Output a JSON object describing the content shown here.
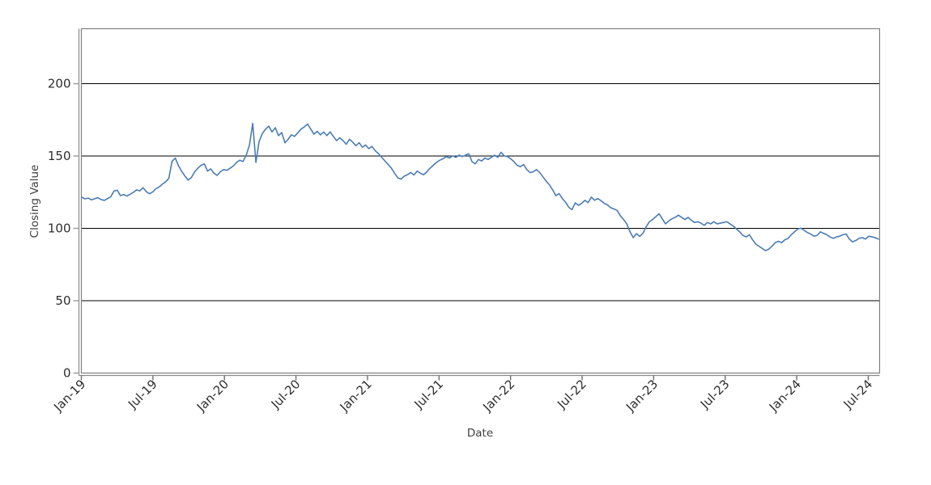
{
  "chart_data": {
    "type": "line",
    "title": "",
    "xlabel": "Date",
    "ylabel": "Closing Value",
    "legend": null,
    "grid": "horizontal-only",
    "x_tick_labels": [
      "Jan-19",
      "Jul-19",
      "Jan-20",
      "Jul-20",
      "Jan-21",
      "Jul-21",
      "Jan-22",
      "Jul-22",
      "Jan-23",
      "Jul-23",
      "Jan-24",
      "Jul-24"
    ],
    "y_tick_labels": [
      "0",
      "50",
      "100",
      "150",
      "200"
    ],
    "y_ticks": [
      0,
      50,
      100,
      150,
      200
    ],
    "gridline_values": [
      50,
      100,
      150,
      200
    ],
    "ylim": [
      0,
      238
    ],
    "x_start": "2019-01",
    "x_end": "2024-08",
    "sampling": "approx-weekly",
    "series": [
      {
        "name": "Closing Value",
        "color": "#4a7cb5",
        "values": [
          121.5,
          120.4,
          120.9,
          119.7,
          120.5,
          121.2,
          119.9,
          119.3,
          120.6,
          121.9,
          125.8,
          126.4,
          122.6,
          123.4,
          122.3,
          123.6,
          124.9,
          126.6,
          125.9,
          128.1,
          125.4,
          123.9,
          125.2,
          127.4,
          128.6,
          130.6,
          132.1,
          134.6,
          146.4,
          148.6,
          143.2,
          139.4,
          136.1,
          133.3,
          135.2,
          139.1,
          141.6,
          143.6,
          144.6,
          139.6,
          141.1,
          138.1,
          136.6,
          139.2,
          140.6,
          140.1,
          141.6,
          143.1,
          145.6,
          147.1,
          146.2,
          150.6,
          157.6,
          172.6,
          145.6,
          160.2,
          165.6,
          168.6,
          170.6,
          166.6,
          169.6,
          164.1,
          166.2,
          159.1,
          161.6,
          164.6,
          163.6,
          166.1,
          168.6,
          170.1,
          172.1,
          168.6,
          165.1,
          167.1,
          164.6,
          166.6,
          164.1,
          166.7,
          163.6,
          160.6,
          162.6,
          160.7,
          158.1,
          161.6,
          159.6,
          157.1,
          159.2,
          156.1,
          157.6,
          155.1,
          156.6,
          153.6,
          151.6,
          149.1,
          146.6,
          144.1,
          141.6,
          138.1,
          134.9,
          134.1,
          136.1,
          137.1,
          138.6,
          136.9,
          139.6,
          138.1,
          137.1,
          139.1,
          141.6,
          143.6,
          145.6,
          147.1,
          148.1,
          149.6,
          148.6,
          150.1,
          149.1,
          150.6,
          149.6,
          150.6,
          151.6,
          146.1,
          144.6,
          147.6,
          146.6,
          148.6,
          147.6,
          149.1,
          150.6,
          149.1,
          152.6,
          150.1,
          149.6,
          148.1,
          146.1,
          143.6,
          142.6,
          144.1,
          140.6,
          138.6,
          139.1,
          140.6,
          138.6,
          135.6,
          132.6,
          130.1,
          126.6,
          122.6,
          124.1,
          120.6,
          118.1,
          114.6,
          112.9,
          117.6,
          115.9,
          117.3,
          119.4,
          117.8,
          121.6,
          119.4,
          120.6,
          119.1,
          117.3,
          116.2,
          114.3,
          113.4,
          112.4,
          108.7,
          106.1,
          103.1,
          97.6,
          93.6,
          96.4,
          94.4,
          96.6,
          101.1,
          104.6,
          106.1,
          108.1,
          110.1,
          106.6,
          103.1,
          105.1,
          106.6,
          107.6,
          109.1,
          107.6,
          106.1,
          107.6,
          105.6,
          104.1,
          104.6,
          103.6,
          102.1,
          104.1,
          103.1,
          104.6,
          103.1,
          103.6,
          104.1,
          104.6,
          103.1,
          101.6,
          99.6,
          97.6,
          95.1,
          94.1,
          95.6,
          92.1,
          89.1,
          87.6,
          86.1,
          84.6,
          85.6,
          87.6,
          90.1,
          91.1,
          90.1,
          92.1,
          93.1,
          95.6,
          97.6,
          99.6,
          100.1,
          98.6,
          97.1,
          96.1,
          94.6,
          95.1,
          97.6,
          96.6,
          95.6,
          94.1,
          93.1,
          94.1,
          94.6,
          95.6,
          96.1,
          92.6,
          90.6,
          91.6,
          93.1,
          93.6,
          92.6,
          94.6,
          94.1,
          93.6,
          92.6
        ]
      }
    ]
  },
  "colors": {
    "background": "#ffffff",
    "frame": "#808080",
    "axis_line": "#8a8a8a",
    "tick_mark": "#9a9a9a",
    "gridline": "#000000",
    "tick_label": "#2e2e2e",
    "axis_label": "#3f3f3f",
    "line": "#4a7cb5"
  }
}
